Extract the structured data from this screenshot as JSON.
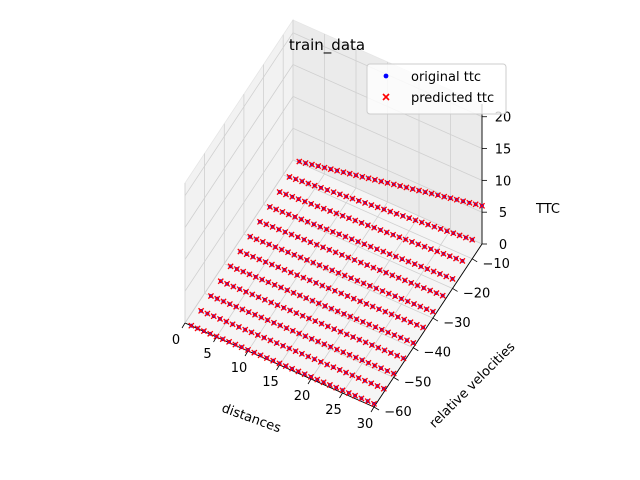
{
  "chart_data": {
    "type": "scatter",
    "projection": "3d",
    "title": "train_data",
    "xlabel": "distances",
    "ylabel": "relative velocities",
    "zlabel": "TTC",
    "xticks": [
      "0",
      "5",
      "10",
      "15",
      "20",
      "25",
      "30"
    ],
    "yticks": [
      "−60",
      "−50",
      "−40",
      "−30",
      "−20",
      "−10"
    ],
    "zticks": [
      "0",
      "5",
      "10",
      "15",
      "20"
    ],
    "xlim": [
      0,
      30
    ],
    "ylim": [
      -60,
      -5
    ],
    "zlim": [
      0,
      22
    ],
    "grid": true,
    "legend_position": "top-right",
    "series": [
      {
        "name": "original ttc",
        "marker": "dot",
        "color": "#0000ff",
        "x_range": [
          1,
          30
        ],
        "x_count": 30,
        "velocities": [
          -60,
          -55,
          -50,
          -45,
          -40,
          -35,
          -30,
          -25,
          -20,
          -15,
          -10,
          -5
        ],
        "ttc": "x / -velocity"
      },
      {
        "name": "predicted ttc",
        "marker": "x",
        "color": "#ff0000",
        "x_range": [
          1,
          30
        ],
        "x_count": 30,
        "velocities": [
          -60,
          -55,
          -50,
          -45,
          -40,
          -35,
          -30,
          -25,
          -20,
          -15,
          -10,
          -5
        ],
        "ttc": "x / -velocity"
      }
    ]
  }
}
